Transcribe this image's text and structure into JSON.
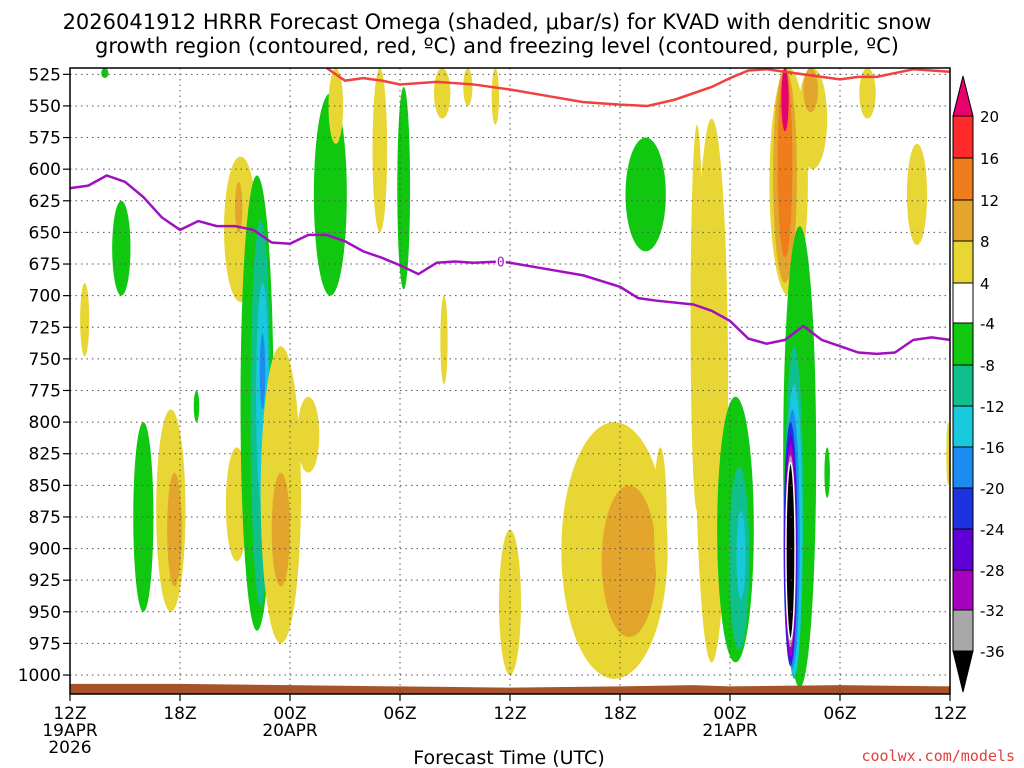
{
  "chart_data": {
    "type": "time-height contour",
    "title_line1": "2026041912 HRRR Forecast Omega (shaded, μbar/s) for KVAD with dendritic snow",
    "title_line2": "growth region (contoured, red, ºC) and freezing level (contoured, purple, ºC)",
    "xlabel": "Forecast Time (UTC)",
    "credit": "coolwx.com/models",
    "x_range_hours": [
      0,
      48
    ],
    "y_range_hpa": [
      520,
      1015
    ],
    "y_ticks": [
      525,
      550,
      575,
      600,
      625,
      650,
      675,
      700,
      725,
      750,
      775,
      800,
      825,
      850,
      875,
      900,
      925,
      950,
      975,
      1000
    ],
    "x_ticks": [
      {
        "hour": 0,
        "label": "12Z",
        "sub": [
          "19APR",
          "2026"
        ]
      },
      {
        "hour": 6,
        "label": "18Z",
        "sub": []
      },
      {
        "hour": 12,
        "label": "00Z",
        "sub": [
          "20APR"
        ]
      },
      {
        "hour": 18,
        "label": "06Z",
        "sub": []
      },
      {
        "hour": 24,
        "label": "12Z",
        "sub": []
      },
      {
        "hour": 30,
        "label": "18Z",
        "sub": []
      },
      {
        "hour": 36,
        "label": "00Z",
        "sub": [
          "21APR"
        ]
      },
      {
        "hour": 42,
        "label": "06Z",
        "sub": []
      },
      {
        "hour": 48,
        "label": "12Z",
        "sub": []
      }
    ],
    "colorbar": {
      "ticks": [
        20,
        16,
        12,
        8,
        4,
        -4,
        -8,
        -12,
        -16,
        -20,
        -24,
        -28,
        -32,
        -36
      ],
      "bins": [
        {
          "range": [
            20,
            99
          ],
          "color": "#e8006f"
        },
        {
          "range": [
            16,
            20
          ],
          "color": "#ff2b2b"
        },
        {
          "range": [
            12,
            16
          ],
          "color": "#f07d1c"
        },
        {
          "range": [
            8,
            12
          ],
          "color": "#e3a52c"
        },
        {
          "range": [
            4,
            8
          ],
          "color": "#e8d634"
        },
        {
          "range": [
            -4,
            4
          ],
          "color": "#ffffff"
        },
        {
          "range": [
            -8,
            -4
          ],
          "color": "#10c810"
        },
        {
          "range": [
            -12,
            -8
          ],
          "color": "#10c08c"
        },
        {
          "range": [
            -16,
            -12
          ],
          "color": "#18c8dc"
        },
        {
          "range": [
            -20,
            -16
          ],
          "color": "#1c8cf0"
        },
        {
          "range": [
            -24,
            -20
          ],
          "color": "#1c34e0"
        },
        {
          "range": [
            -28,
            -24
          ],
          "color": "#6000d8"
        },
        {
          "range": [
            -32,
            -28
          ],
          "color": "#a800c0"
        },
        {
          "range": [
            -36,
            -32
          ],
          "color": "#a8a8a8"
        },
        {
          "range": [
            -99,
            -36
          ],
          "color": "#000000"
        }
      ]
    },
    "surface": {
      "color": "#a8522a",
      "points": [
        [
          0,
          1007
        ],
        [
          6,
          1007
        ],
        [
          12,
          1008
        ],
        [
          18,
          1009
        ],
        [
          24,
          1010
        ],
        [
          30,
          1009
        ],
        [
          34,
          1008
        ],
        [
          36,
          1009
        ],
        [
          42,
          1008
        ],
        [
          48,
          1009
        ]
      ]
    },
    "dgz_top_line": {
      "name": "Dendritic growth region (-12 ºC)",
      "color": "#f04040",
      "points": [
        [
          14,
          520
        ],
        [
          15,
          530
        ],
        [
          16,
          528
        ],
        [
          17,
          530
        ],
        [
          18,
          533
        ],
        [
          20,
          531
        ],
        [
          22,
          533
        ],
        [
          24,
          537
        ],
        [
          26,
          542
        ],
        [
          28,
          547
        ],
        [
          30,
          549
        ],
        [
          31.5,
          550
        ],
        [
          33,
          545
        ],
        [
          35,
          535
        ],
        [
          36,
          528
        ],
        [
          37,
          522
        ],
        [
          38,
          521
        ],
        [
          41,
          527
        ],
        [
          42,
          529
        ],
        [
          43,
          527
        ],
        [
          44,
          527
        ],
        [
          45,
          524
        ],
        [
          46,
          521
        ],
        [
          47,
          522
        ],
        [
          48,
          523
        ]
      ]
    },
    "freezing_level": {
      "name": "Freezing level (0 ºC)",
      "label": "0",
      "label_hour": 23.5,
      "color": "#a010c0",
      "points": [
        [
          0,
          615
        ],
        [
          1,
          613
        ],
        [
          2,
          605
        ],
        [
          3,
          610
        ],
        [
          4,
          622
        ],
        [
          5,
          638
        ],
        [
          6,
          648
        ],
        [
          7,
          641
        ],
        [
          8,
          645
        ],
        [
          9,
          645
        ],
        [
          10,
          648
        ],
        [
          11,
          658
        ],
        [
          12,
          659
        ],
        [
          13,
          652
        ],
        [
          14,
          652
        ],
        [
          15,
          657
        ],
        [
          16,
          665
        ],
        [
          17,
          670
        ],
        [
          18,
          676
        ],
        [
          19,
          683
        ],
        [
          20,
          674
        ],
        [
          21,
          673
        ],
        [
          22,
          674
        ],
        [
          23.5,
          673
        ],
        [
          24,
          674
        ],
        [
          26,
          679
        ],
        [
          28,
          684
        ],
        [
          30,
          693
        ],
        [
          31,
          702
        ],
        [
          32,
          704
        ],
        [
          34,
          707
        ],
        [
          35,
          712
        ],
        [
          36,
          720
        ],
        [
          37,
          734
        ],
        [
          38,
          738
        ],
        [
          39,
          735
        ],
        [
          40,
          724
        ],
        [
          41,
          735
        ],
        [
          42,
          740
        ],
        [
          43,
          745
        ],
        [
          44,
          746
        ],
        [
          45,
          745
        ],
        [
          46,
          735
        ],
        [
          47,
          733
        ],
        [
          48,
          735
        ]
      ]
    },
    "features": [
      {
        "hour": 0.8,
        "w": 0.25,
        "top": 690,
        "bottom": 748,
        "v": 5
      },
      {
        "hour": 2.8,
        "w": 0.5,
        "top": 625,
        "bottom": 700,
        "v": -6
      },
      {
        "hour": 4.0,
        "w": 0.55,
        "top": 800,
        "bottom": 950,
        "v": -6
      },
      {
        "hour": 5.5,
        "w": 0.8,
        "top": 790,
        "bottom": 950,
        "v": 6
      },
      {
        "hour": 5.7,
        "w": 0.4,
        "top": 840,
        "bottom": 930,
        "v": 9
      },
      {
        "hour": 6.9,
        "w": 0.15,
        "top": 775,
        "bottom": 800,
        "v": -6
      },
      {
        "hour": 1.9,
        "w": 0.2,
        "top": 520,
        "bottom": 528,
        "v": -6
      },
      {
        "hour": 9.3,
        "w": 0.9,
        "top": 590,
        "bottom": 705,
        "v": 6
      },
      {
        "hour": 9.2,
        "w": 0.2,
        "top": 610,
        "bottom": 650,
        "v": 9
      },
      {
        "hour": 9.1,
        "w": 0.6,
        "top": 820,
        "bottom": 910,
        "v": 6
      },
      {
        "hour": 10.2,
        "w": 0.9,
        "top": 605,
        "bottom": 965,
        "v": -6
      },
      {
        "hour": 10.4,
        "w": 0.55,
        "top": 640,
        "bottom": 945,
        "v": -10
      },
      {
        "hour": 10.5,
        "w": 0.35,
        "top": 690,
        "bottom": 870,
        "v": -14
      },
      {
        "hour": 10.5,
        "w": 0.15,
        "top": 730,
        "bottom": 790,
        "v": -18
      },
      {
        "hour": 11.5,
        "w": 1.1,
        "top": 740,
        "bottom": 975,
        "v": 6
      },
      {
        "hour": 11.5,
        "w": 0.5,
        "top": 840,
        "bottom": 930,
        "v": 9
      },
      {
        "hour": 13.0,
        "w": 0.6,
        "top": 780,
        "bottom": 840,
        "v": 6
      },
      {
        "hour": 14.2,
        "w": 0.9,
        "top": 540,
        "bottom": 700,
        "v": -6
      },
      {
        "hour": 14.5,
        "w": 0.4,
        "top": 520,
        "bottom": 580,
        "v": 6
      },
      {
        "hour": 16.9,
        "w": 0.4,
        "top": 520,
        "bottom": 650,
        "v": 6
      },
      {
        "hour": 18.2,
        "w": 0.35,
        "top": 535,
        "bottom": 695,
        "v": -6
      },
      {
        "hour": 20.3,
        "w": 0.45,
        "top": 520,
        "bottom": 560,
        "v": 6
      },
      {
        "hour": 20.4,
        "w": 0.2,
        "top": 700,
        "bottom": 770,
        "v": 6
      },
      {
        "hour": 21.7,
        "w": 0.25,
        "top": 520,
        "bottom": 550,
        "v": 6
      },
      {
        "hour": 23.2,
        "w": 0.2,
        "top": 520,
        "bottom": 565,
        "v": 6
      },
      {
        "hour": 24.0,
        "w": 0.6,
        "top": 885,
        "bottom": 1000,
        "v": 6
      },
      {
        "hour": 29.7,
        "w": 2.9,
        "top": 800,
        "bottom": 1003,
        "v": 6
      },
      {
        "hour": 30.5,
        "w": 1.5,
        "top": 850,
        "bottom": 970,
        "v": 9
      },
      {
        "hour": 31.4,
        "w": 1.1,
        "top": 575,
        "bottom": 665,
        "v": -6
      },
      {
        "hour": 32.2,
        "w": 0.35,
        "top": 820,
        "bottom": 935,
        "v": 6
      },
      {
        "hour": 34.2,
        "w": 0.35,
        "top": 565,
        "bottom": 870,
        "v": 6
      },
      {
        "hour": 35.0,
        "w": 0.9,
        "top": 560,
        "bottom": 990,
        "v": 6
      },
      {
        "hour": 36.3,
        "w": 1.0,
        "top": 780,
        "bottom": 990,
        "v": -6
      },
      {
        "hour": 36.5,
        "w": 0.55,
        "top": 835,
        "bottom": 980,
        "v": -10
      },
      {
        "hour": 36.6,
        "w": 0.25,
        "top": 870,
        "bottom": 940,
        "v": -14
      },
      {
        "hour": 39.2,
        "w": 1.05,
        "top": 520,
        "bottom": 700,
        "v": 6
      },
      {
        "hour": 39.0,
        "w": 0.65,
        "top": 520,
        "bottom": 690,
        "v": 10
      },
      {
        "hour": 39.0,
        "w": 0.4,
        "top": 520,
        "bottom": 670,
        "v": 14
      },
      {
        "hour": 39.0,
        "w": 0.2,
        "top": 520,
        "bottom": 570,
        "v": 20
      },
      {
        "hour": 40.5,
        "w": 0.8,
        "top": 520,
        "bottom": 600,
        "v": 6
      },
      {
        "hour": 40.4,
        "w": 0.4,
        "top": 520,
        "bottom": 555,
        "v": 9
      },
      {
        "hour": 39.8,
        "w": 0.9,
        "top": 645,
        "bottom": 1010,
        "v": -6
      },
      {
        "hour": 39.5,
        "w": 0.5,
        "top": 740,
        "bottom": 1003,
        "v": -10
      },
      {
        "hour": 39.5,
        "w": 0.45,
        "top": 770,
        "bottom": 1000,
        "v": -14
      },
      {
        "hour": 39.4,
        "w": 0.4,
        "top": 790,
        "bottom": 995,
        "v": -18
      },
      {
        "hour": 39.3,
        "w": 0.38,
        "top": 800,
        "bottom": 993,
        "v": -22
      },
      {
        "hour": 39.3,
        "w": 0.34,
        "top": 810,
        "bottom": 990,
        "v": -26
      },
      {
        "hour": 39.3,
        "w": 0.3,
        "top": 818,
        "bottom": 985,
        "v": -30
      },
      {
        "hour": 39.3,
        "w": 0.27,
        "top": 826,
        "bottom": 978,
        "v": -34
      },
      {
        "hour": 39.3,
        "w": 0.25,
        "top": 832,
        "bottom": 972,
        "v": -40
      },
      {
        "hour": 41.3,
        "w": 0.15,
        "top": 820,
        "bottom": 860,
        "v": -6
      },
      {
        "hour": 43.5,
        "w": 0.45,
        "top": 520,
        "bottom": 560,
        "v": 6
      },
      {
        "hour": 46.2,
        "w": 0.55,
        "top": 580,
        "bottom": 660,
        "v": 6
      },
      {
        "hour": 47.9,
        "w": 0.1,
        "top": 800,
        "bottom": 850,
        "v": 6
      }
    ]
  }
}
